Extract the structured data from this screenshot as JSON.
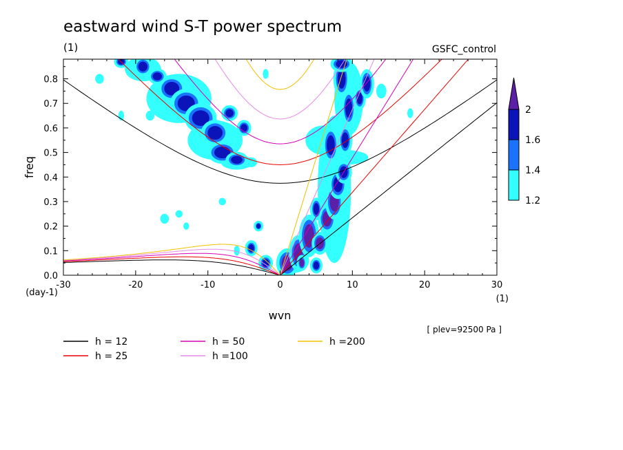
{
  "chart_data": {
    "type": "heatmap",
    "title": "eastward wind S-T power spectrum",
    "subtitle_left": "(1)",
    "subtitle_right": "GSFC_control",
    "xlabel": "wvn",
    "ylabel": "freq",
    "x_unit": "(1)",
    "y_unit": "(day-1)",
    "footnote": "[ plev=92500 Pa ]",
    "xlim": [
      -30,
      30
    ],
    "ylim": [
      0,
      0.88
    ],
    "x_ticks": [
      -30,
      -20,
      -10,
      0,
      10,
      20,
      30
    ],
    "y_ticks": [
      0.0,
      0.1,
      0.2,
      0.3,
      0.4,
      0.5,
      0.6,
      0.7,
      0.8
    ],
    "x_tick_labels": [
      "-30",
      "-20",
      "-10",
      "0",
      "10",
      "20",
      "30"
    ],
    "y_tick_labels": [
      "0.0",
      "0.1",
      "0.2",
      "0.3",
      "0.4",
      "0.5",
      "0.6",
      "0.7",
      "0.8"
    ],
    "colorbar": {
      "levels": [
        1.2,
        1.4,
        1.6,
        2
      ],
      "labels": [
        "1.2",
        "1.4",
        "1.6",
        "2"
      ],
      "colors": [
        "#33ffff",
        "#1a73ff",
        "#0a14b8",
        "#5c1fa8"
      ]
    },
    "dispersion_curves": [
      {
        "label": "h = 12",
        "h": 12,
        "color": "#000000"
      },
      {
        "label": "h = 25",
        "h": 25,
        "color": "#e80000"
      },
      {
        "label": "h = 50",
        "h": 50,
        "color": "#d400b8"
      },
      {
        "label": "h =100",
        "h": 100,
        "color": "#e68ae6"
      },
      {
        "label": "h =200",
        "h": 200,
        "color": "#f0c000"
      }
    ],
    "power_blobs": [
      {
        "x": -15,
        "y": 0.76,
        "rx": 1.3,
        "ry": 0.035,
        "level": 3
      },
      {
        "x": -13,
        "y": 0.7,
        "rx": 1.5,
        "ry": 0.04,
        "level": 3
      },
      {
        "x": -11,
        "y": 0.64,
        "rx": 1.5,
        "ry": 0.04,
        "level": 3
      },
      {
        "x": -9,
        "y": 0.58,
        "rx": 1.3,
        "ry": 0.035,
        "level": 3
      },
      {
        "x": -8,
        "y": 0.5,
        "rx": 1.4,
        "ry": 0.03,
        "level": 3
      },
      {
        "x": -6,
        "y": 0.47,
        "rx": 1.0,
        "ry": 0.02,
        "level": 3
      },
      {
        "x": -19,
        "y": 0.85,
        "rx": 0.8,
        "ry": 0.025,
        "level": 3
      },
      {
        "x": -22,
        "y": 0.87,
        "rx": 0.6,
        "ry": 0.015,
        "level": 3
      },
      {
        "x": -17,
        "y": 0.81,
        "rx": 0.8,
        "ry": 0.02,
        "level": 2
      },
      {
        "x": -7,
        "y": 0.66,
        "rx": 0.7,
        "ry": 0.02,
        "level": 2
      },
      {
        "x": -5,
        "y": 0.6,
        "rx": 0.6,
        "ry": 0.02,
        "level": 2
      },
      {
        "x": -3,
        "y": 0.2,
        "rx": 0.35,
        "ry": 0.012,
        "level": 3
      },
      {
        "x": -4,
        "y": 0.11,
        "rx": 0.5,
        "ry": 0.02,
        "level": 3
      },
      {
        "x": -2,
        "y": 0.05,
        "rx": 0.6,
        "ry": 0.02,
        "level": 3
      },
      {
        "x": 1,
        "y": 0.05,
        "rx": 1.0,
        "ry": 0.04,
        "level": 4
      },
      {
        "x": 2.5,
        "y": 0.09,
        "rx": 0.8,
        "ry": 0.05,
        "level": 4
      },
      {
        "x": 4,
        "y": 0.16,
        "rx": 0.9,
        "ry": 0.06,
        "level": 4
      },
      {
        "x": 5,
        "y": 0.04,
        "rx": 0.5,
        "ry": 0.02,
        "level": 3
      },
      {
        "x": 5.5,
        "y": 0.13,
        "rx": 0.7,
        "ry": 0.03,
        "level": 4
      },
      {
        "x": 6.5,
        "y": 0.23,
        "rx": 0.8,
        "ry": 0.04,
        "level": 4
      },
      {
        "x": 7.5,
        "y": 0.3,
        "rx": 0.8,
        "ry": 0.05,
        "level": 4
      },
      {
        "x": 8,
        "y": 0.37,
        "rx": 0.8,
        "ry": 0.04,
        "level": 3
      },
      {
        "x": 8.8,
        "y": 0.42,
        "rx": 0.7,
        "ry": 0.03,
        "level": 3
      },
      {
        "x": 9,
        "y": 0.55,
        "rx": 0.6,
        "ry": 0.04,
        "level": 3
      },
      {
        "x": 9.5,
        "y": 0.68,
        "rx": 0.6,
        "ry": 0.05,
        "level": 3
      },
      {
        "x": 8.5,
        "y": 0.8,
        "rx": 0.7,
        "ry": 0.05,
        "level": 3
      },
      {
        "x": 8.5,
        "y": 0.86,
        "rx": 1.0,
        "ry": 0.02,
        "level": 2
      },
      {
        "x": 5,
        "y": 0.27,
        "rx": 0.5,
        "ry": 0.03,
        "level": 3
      },
      {
        "x": 7,
        "y": 0.53,
        "rx": 0.7,
        "ry": 0.05,
        "level": 2
      },
      {
        "x": 11,
        "y": 0.72,
        "rx": 0.5,
        "ry": 0.03,
        "level": 2
      },
      {
        "x": 12,
        "y": 0.78,
        "rx": 0.6,
        "ry": 0.04,
        "level": 2
      },
      {
        "x": 3,
        "y": 0.05,
        "rx": 0.4,
        "ry": 0.02,
        "level": 4
      }
    ],
    "cyan_patches": [
      {
        "x": -14,
        "y": 0.72,
        "rx": 4.5,
        "ry": 0.1
      },
      {
        "x": -9,
        "y": 0.55,
        "rx": 3.8,
        "ry": 0.08
      },
      {
        "x": -19,
        "y": 0.84,
        "rx": 2.5,
        "ry": 0.05
      },
      {
        "x": -6,
        "y": 0.46,
        "rx": 2.2,
        "ry": 0.03
      },
      {
        "x": 7.5,
        "y": 0.35,
        "rx": 2.3,
        "ry": 0.3
      },
      {
        "x": 9.5,
        "y": 0.72,
        "rx": 2.0,
        "ry": 0.15
      },
      {
        "x": 6,
        "y": 0.55,
        "rx": 2.5,
        "ry": 0.06
      },
      {
        "x": 2,
        "y": 0.06,
        "rx": 2.0,
        "ry": 0.05
      },
      {
        "x": 9,
        "y": 0.48,
        "rx": 3.2,
        "ry": 0.03
      },
      {
        "x": -16,
        "y": 0.23,
        "rx": 0.6,
        "ry": 0.02
      },
      {
        "x": -14,
        "y": 0.25,
        "rx": 0.5,
        "ry": 0.015
      },
      {
        "x": -13,
        "y": 0.2,
        "rx": 0.4,
        "ry": 0.015
      },
      {
        "x": -8,
        "y": 0.3,
        "rx": 0.5,
        "ry": 0.015
      },
      {
        "x": -4,
        "y": 0.46,
        "rx": 0.8,
        "ry": 0.02
      },
      {
        "x": -22,
        "y": 0.65,
        "rx": 0.4,
        "ry": 0.02
      },
      {
        "x": -25,
        "y": 0.8,
        "rx": 0.6,
        "ry": 0.02
      },
      {
        "x": 14,
        "y": 0.75,
        "rx": 0.7,
        "ry": 0.03
      },
      {
        "x": 18,
        "y": 0.66,
        "rx": 0.4,
        "ry": 0.02
      },
      {
        "x": -18,
        "y": 0.65,
        "rx": 0.6,
        "ry": 0.02
      },
      {
        "x": -6,
        "y": 0.1,
        "rx": 0.4,
        "ry": 0.02
      },
      {
        "x": -2,
        "y": 0.82,
        "rx": 0.4,
        "ry": 0.02
      }
    ]
  }
}
